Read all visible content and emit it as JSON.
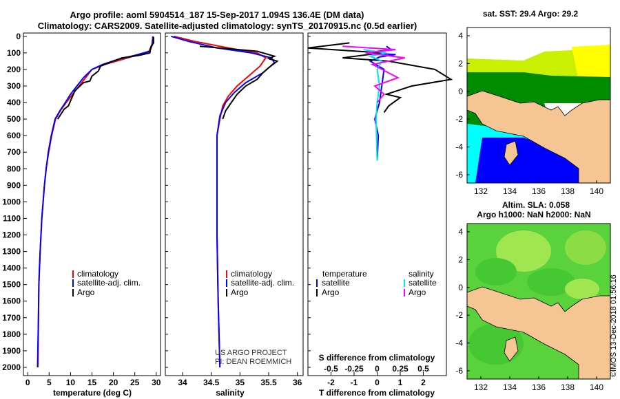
{
  "header": {
    "title_line1": "Argo profile: aoml 5904514_187 15-Sep-2017 1.094S 136.4E (DM data)",
    "title_line2": "Climatology: CARS2009. Satellite-adjusted climatology: synTS_20170915.nc (0.5d earlier)"
  },
  "depth_ticks": [
    0,
    100,
    200,
    300,
    400,
    500,
    600,
    700,
    800,
    900,
    1000,
    1100,
    1200,
    1300,
    1400,
    1500,
    1600,
    1700,
    1800,
    1900,
    2000
  ],
  "chart_data": [
    {
      "type": "line",
      "title": "Temperature profile",
      "xlabel": "temperature (deg C)",
      "ylabel": "depth",
      "xlim": [
        -1,
        31
      ],
      "ylim": [
        2050,
        -20
      ],
      "x_ticks": [
        0,
        5,
        10,
        15,
        20,
        25,
        30
      ],
      "legend": [
        "climatology",
        "satellite-adj. clim.",
        "Argo"
      ],
      "series": [
        {
          "name": "climatology",
          "color": "#ff0000",
          "x": [
            29.2,
            29.0,
            28.3,
            26,
            22,
            18,
            15,
            13.5,
            12,
            10.5,
            9,
            7.6,
            6.5,
            5.6,
            4.9,
            4.3,
            3.9,
            3.6,
            3.3,
            3.1,
            2.9,
            2.75,
            2.6,
            2.5,
            2.4
          ],
          "y": [
            0,
            50,
            90,
            110,
            140,
            170,
            200,
            250,
            300,
            350,
            400,
            450,
            500,
            600,
            700,
            800,
            900,
            1000,
            1100,
            1200,
            1300,
            1400,
            1500,
            1700,
            2000
          ]
        },
        {
          "name": "satellite-adj. clim.",
          "color": "#0000ff",
          "x": [
            29.3,
            29.1,
            28.5,
            25,
            21,
            17.5,
            15,
            13,
            11.5,
            10,
            8.8,
            7.5,
            6.4,
            5.5,
            4.8,
            4.3,
            3.9,
            3.6,
            3.3,
            3.1,
            2.9,
            2.75,
            2.6,
            2.5,
            2.3
          ],
          "y": [
            0,
            50,
            90,
            115,
            140,
            170,
            200,
            250,
            300,
            350,
            400,
            450,
            500,
            600,
            700,
            800,
            900,
            1000,
            1100,
            1200,
            1300,
            1400,
            1500,
            1700,
            2000
          ]
        },
        {
          "name": "Argo",
          "color": "#000000",
          "x": [
            29.4,
            29.4,
            28.8,
            28.5,
            26,
            22,
            20,
            17,
            16.5,
            15,
            14.5,
            13,
            11,
            9.5,
            8.5,
            7
          ],
          "y": [
            5,
            40,
            60,
            100,
            115,
            130,
            150,
            180,
            210,
            240,
            270,
            280,
            330,
            420,
            440,
            500
          ]
        }
      ]
    },
    {
      "type": "line",
      "title": "Salinity profile",
      "xlabel": "salinity",
      "ylabel": "depth",
      "xlim": [
        33.7,
        36.1
      ],
      "ylim": [
        2050,
        -20
      ],
      "x_ticks": [
        34,
        34.5,
        35,
        35.5,
        36
      ],
      "legend": [
        "climatology",
        "satellite-adj. clim.",
        "Argo"
      ],
      "annotation": [
        "US ARGO PROJECT",
        "PI: DEAN ROEMMICH"
      ],
      "series": [
        {
          "name": "climatology",
          "color": "#ff0000",
          "x": [
            33.85,
            34.2,
            34.8,
            35.3,
            35.45,
            35.35,
            35.15,
            34.95,
            34.8,
            34.7,
            34.65,
            34.6,
            34.6,
            34.6,
            34.6,
            34.62,
            34.65
          ],
          "y": [
            0,
            30,
            70,
            100,
            130,
            180,
            240,
            300,
            360,
            420,
            500,
            600,
            700,
            900,
            1200,
            1600,
            2000
          ]
        },
        {
          "name": "satellite-adj. clim.",
          "color": "#0000ff",
          "x": [
            33.8,
            34.1,
            34.6,
            35.2,
            35.55,
            35.6,
            35.4,
            35.1,
            34.9,
            34.75,
            34.65,
            34.6,
            34.6,
            34.6,
            34.6,
            34.62,
            34.65
          ],
          "y": [
            0,
            30,
            70,
            100,
            130,
            160,
            220,
            280,
            340,
            400,
            480,
            600,
            700,
            900,
            1200,
            1600,
            2000
          ]
        },
        {
          "name": "Argo",
          "color": "#000000",
          "x": [
            34.3,
            34.8,
            35.3,
            35.5,
            35.6,
            35.5,
            35.65,
            35.5,
            35.4,
            35.3,
            35.1,
            34.95,
            34.85,
            34.75,
            34.7
          ],
          "y": [
            60,
            75,
            90,
            110,
            120,
            135,
            150,
            190,
            220,
            260,
            300,
            350,
            400,
            450,
            500
          ]
        }
      ]
    },
    {
      "type": "line",
      "title": "Difference from climatology",
      "xlabel": "T difference from climatology",
      "xlabel2": "S difference from climatology",
      "xlim": [
        -3,
        3
      ],
      "ylim": [
        2050,
        -20
      ],
      "x_ticks": [
        -2,
        -1,
        0,
        1,
        2
      ],
      "x_ticks2": [
        "-0.5",
        "-0.25",
        "0",
        "0.25",
        "0.5"
      ],
      "legend_headers": [
        "temperature",
        "salinity"
      ],
      "legend": [
        "satellite",
        "Argo",
        "satellite",
        "Argo"
      ],
      "series": [
        {
          "name": "temperature satellite",
          "color": "#0000ff",
          "x": [
            0.4,
            0.6,
            -0.5,
            0.8,
            0.1,
            -0.3,
            0.3,
            0.2,
            0.1,
            -0.1,
            0.05,
            0
          ],
          "y": [
            60,
            80,
            100,
            110,
            125,
            150,
            200,
            300,
            400,
            500,
            600,
            750
          ]
        },
        {
          "name": "temperature Argo",
          "color": "#000000",
          "x": [
            -1.2,
            -3,
            0.2,
            -1.5,
            0.5,
            2.5,
            3.2,
            1.5,
            0.4,
            1,
            0.5,
            0.3
          ],
          "y": [
            40,
            70,
            100,
            130,
            150,
            200,
            260,
            300,
            350,
            370,
            420,
            460
          ]
        },
        {
          "name": "salinity satellite",
          "color": "#00e5ee",
          "x": [
            -0.6,
            0.4,
            -0.3,
            0.2,
            0,
            0.1,
            0,
            -0.05,
            0
          ],
          "y": [
            80,
            100,
            120,
            150,
            200,
            300,
            400,
            500,
            750
          ]
        },
        {
          "name": "salinity Argo",
          "color": "#ff00ff",
          "x": [
            -1.5,
            0.8,
            -0.5,
            1.2,
            -0.2,
            0.9,
            -0.1,
            0.3,
            0
          ],
          "y": [
            60,
            80,
            100,
            130,
            170,
            250,
            300,
            350,
            400
          ]
        }
      ]
    }
  ],
  "maps": {
    "sst": {
      "title": "sat. SST: 29.4 Argo: 29.2",
      "x_ticks": [
        "132",
        "134",
        "136",
        "138",
        "140"
      ],
      "y_ticks": [
        "4",
        "2",
        "0",
        "-2",
        "-4",
        "-6"
      ]
    },
    "sla": {
      "title_line1": "Altim. SLA: 0.058",
      "title_line2": "Argo h1000: NaN h2000: NaN",
      "x_ticks": [
        "132",
        "134",
        "136",
        "138",
        "140"
      ],
      "y_ticks": [
        "4",
        "2",
        "0",
        "-2",
        "-4",
        "-6"
      ]
    }
  },
  "footer": {
    "stamp": "©IMOS 13-Dec-2018 01:56:16"
  },
  "colors": {
    "land": "#f5c593",
    "sst_yellow": "#ffff00",
    "sst_yellowgreen": "#c8f000",
    "sst_green": "#008c00",
    "sst_cyan": "#00ffff",
    "sst_blue": "#0000ff",
    "sla_green": "#5ad23c",
    "sla_light": "#a0e650"
  }
}
